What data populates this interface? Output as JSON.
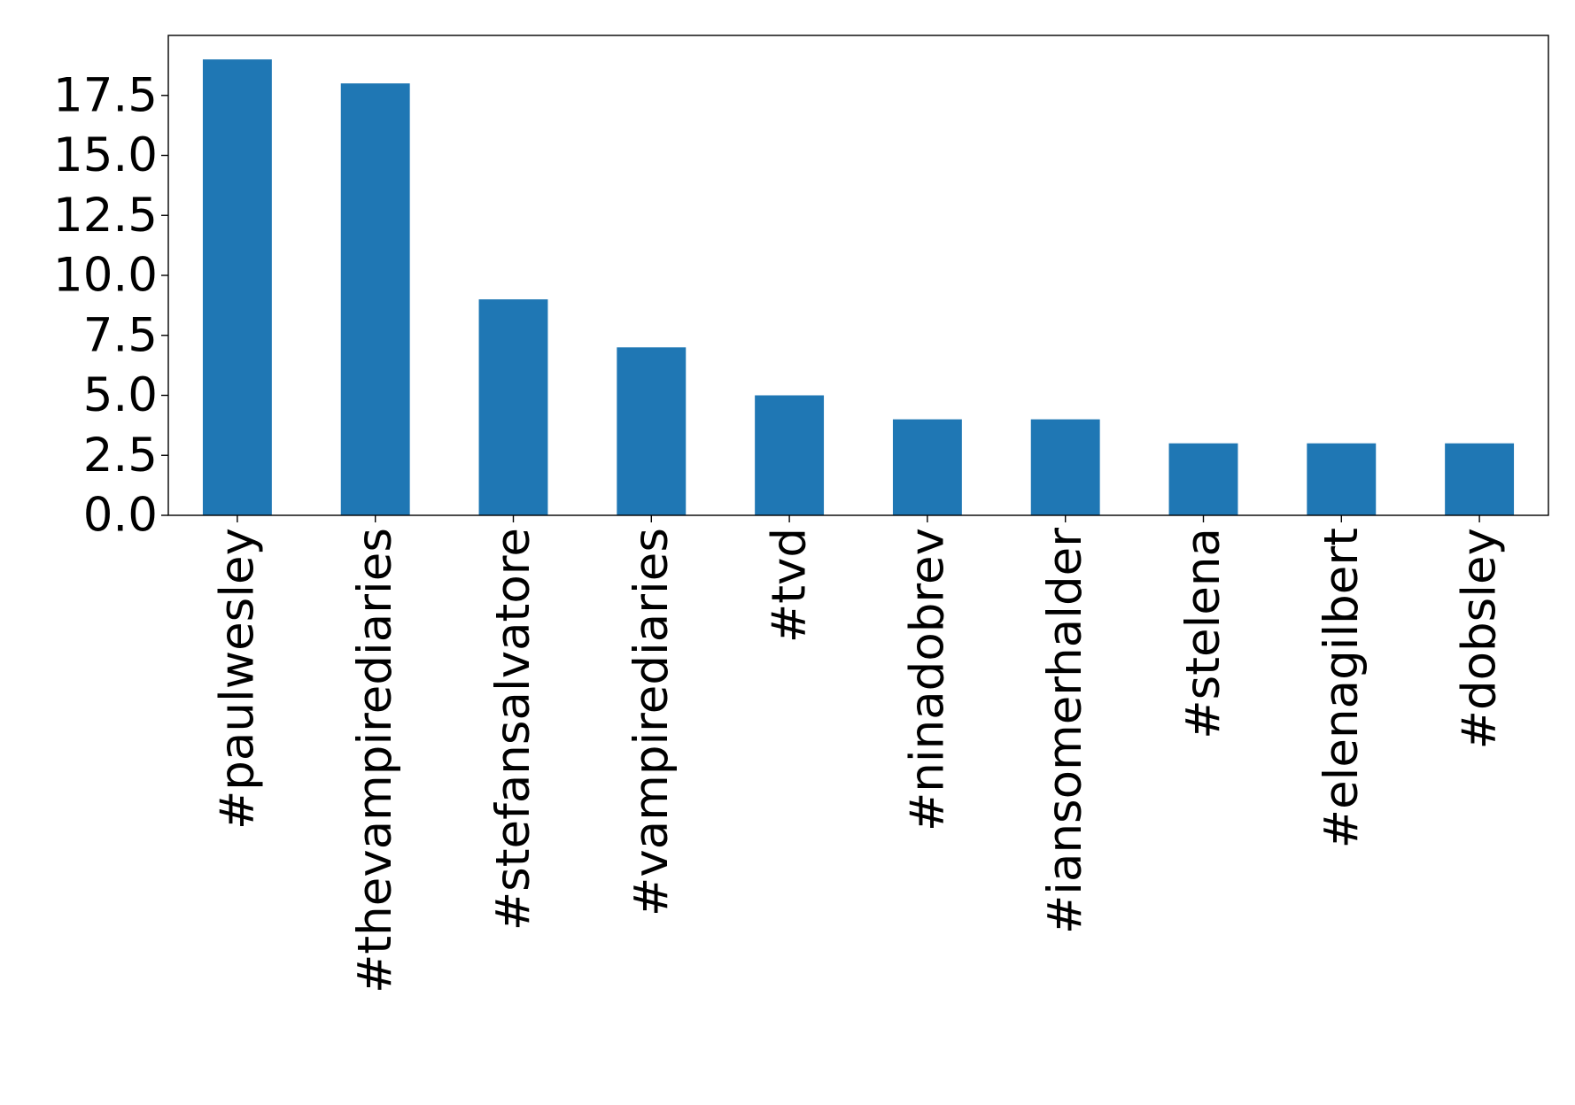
{
  "chart_data": {
    "type": "bar",
    "title": "",
    "xlabel": "",
    "ylabel": "",
    "categories": [
      "#paulwesley",
      "#thevampirediaries",
      "#stefansalvatore",
      "#vampirediaries",
      "#tvd",
      "#ninadobrev",
      "#iansomerhalder",
      "#stelena",
      "#elenagilbert",
      "#dobsley"
    ],
    "values": [
      19,
      18,
      9,
      7,
      5,
      4,
      4,
      3,
      3,
      3
    ],
    "ylim": [
      0,
      20
    ],
    "yticks": [
      "0.0",
      "2.5",
      "5.0",
      "7.5",
      "10.0",
      "12.5",
      "15.0",
      "17.5"
    ],
    "bar_color": "#1f77b4",
    "grid": false,
    "legend": "none"
  }
}
